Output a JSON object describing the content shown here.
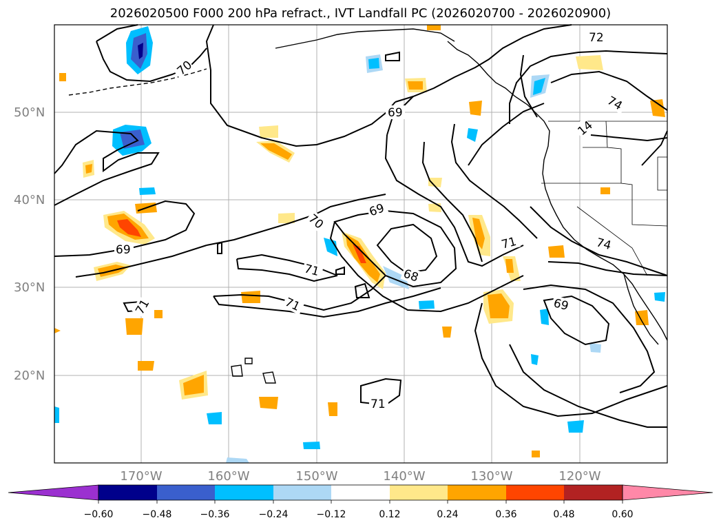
{
  "title": "2026020500 F000 200 hPa refract., IVT Landfall PC (2026020700 - 2026020900)",
  "lat_labels": [
    "50°N",
    "40°N",
    "30°N",
    "20°N"
  ],
  "lon_labels": [
    "170°W",
    "160°W",
    "150°W",
    "140°W",
    "130°W",
    "120°W"
  ],
  "contour_labels": [
    "72",
    "70",
    "69",
    "14",
    "74",
    "69",
    "70",
    "71",
    "68",
    "71",
    "74",
    "69",
    "71",
    "69",
    "71",
    "71"
  ],
  "colorbar": {
    "ticks": [
      "−0.60",
      "−0.48",
      "−0.36",
      "−0.24",
      "−0.12",
      "0.12",
      "0.24",
      "0.36",
      "0.48",
      "0.60"
    ],
    "colors": [
      "#9b30d0",
      "#00008b",
      "#3a5fcd",
      "#00bfff",
      "#add8f5",
      "#ffffff",
      "#ffe88a",
      "#ffa500",
      "#ff4500",
      "#b22222",
      "#ff88a8"
    ]
  },
  "palette": {
    "neg_light": "#add8f5",
    "neg_mid": "#00bfff",
    "neg_dark": "#3a5fcd",
    "neg_deep": "#00008b",
    "pos_light": "#ffe88a",
    "pos_mid": "#ffa500",
    "pos_high": "#ff4500"
  }
}
